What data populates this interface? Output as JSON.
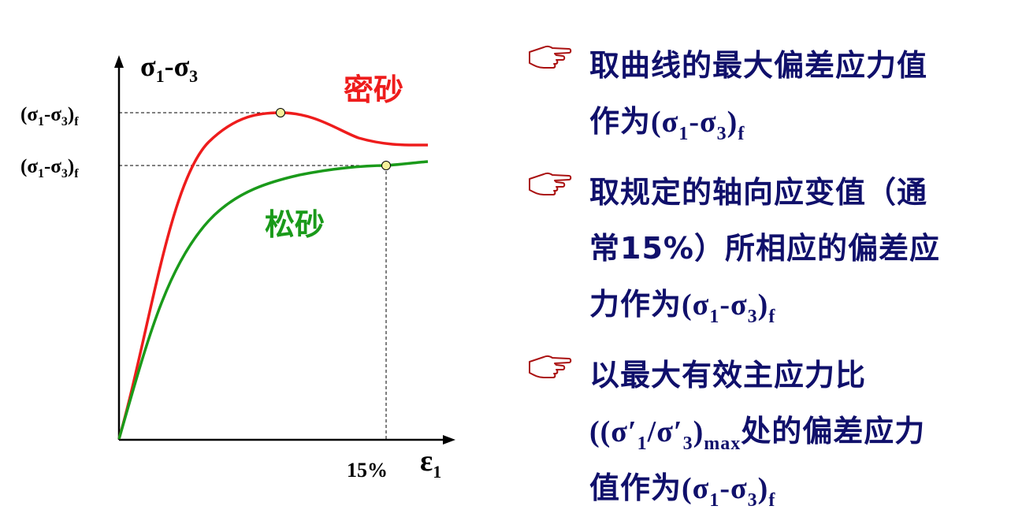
{
  "figure": {
    "y_axis_label": {
      "main": "σ",
      "sub1": "1",
      "mid": "-σ",
      "sub2": "3"
    },
    "x_axis_label": {
      "main": "ε",
      "sub": "1"
    },
    "x_tick_label": "15%",
    "level_label_dense": {
      "open": "(σ",
      "s1": "1",
      "mid": "-σ",
      "s3": "3",
      "close": ")",
      "f": "f"
    },
    "level_label_loose": {
      "open": "(σ",
      "s1": "1",
      "mid": "-σ",
      "s3": "3",
      "close": ")",
      "f": "f"
    },
    "curve_dense_label": "密砂",
    "curve_loose_label": "松砂",
    "colors": {
      "dense": "#ee1c1c",
      "loose": "#1a9a1a",
      "marker_fill": "#f5f09a",
      "axis": "#000000"
    }
  },
  "bullets": [
    {
      "icon": "pointing-hand-icon",
      "line1": "取曲线的最大偏差应力值",
      "line2_pre": "作为",
      "line2_math": {
        "open": "(σ",
        "s1": "1",
        "mid": "-σ",
        "s3": "3",
        "close": ")",
        "f": "f"
      }
    },
    {
      "icon": "pointing-hand-icon",
      "line1": "取规定的轴向应变值（通",
      "line2": "常15%）所相应的偏差应",
      "line3_pre": "力作为",
      "line3_math": {
        "open": "(σ",
        "s1": "1",
        "mid": "-σ",
        "s3": "3",
        "close": ")",
        "f": "f"
      }
    },
    {
      "icon": "pointing-hand-icon",
      "line1": "以最大有效主应力比",
      "line2_math": {
        "open": "((σ′",
        "s1": "1",
        "mid": "/σ′",
        "s3": "3",
        "close": ")",
        "sub": "max"
      },
      "line2_post": "处的偏差应力",
      "line3_pre": "值作为",
      "line3_math": {
        "open": "(σ",
        "s1": "1",
        "mid": "-σ",
        "s3": "3",
        "close": ")",
        "f": "f"
      }
    }
  ]
}
